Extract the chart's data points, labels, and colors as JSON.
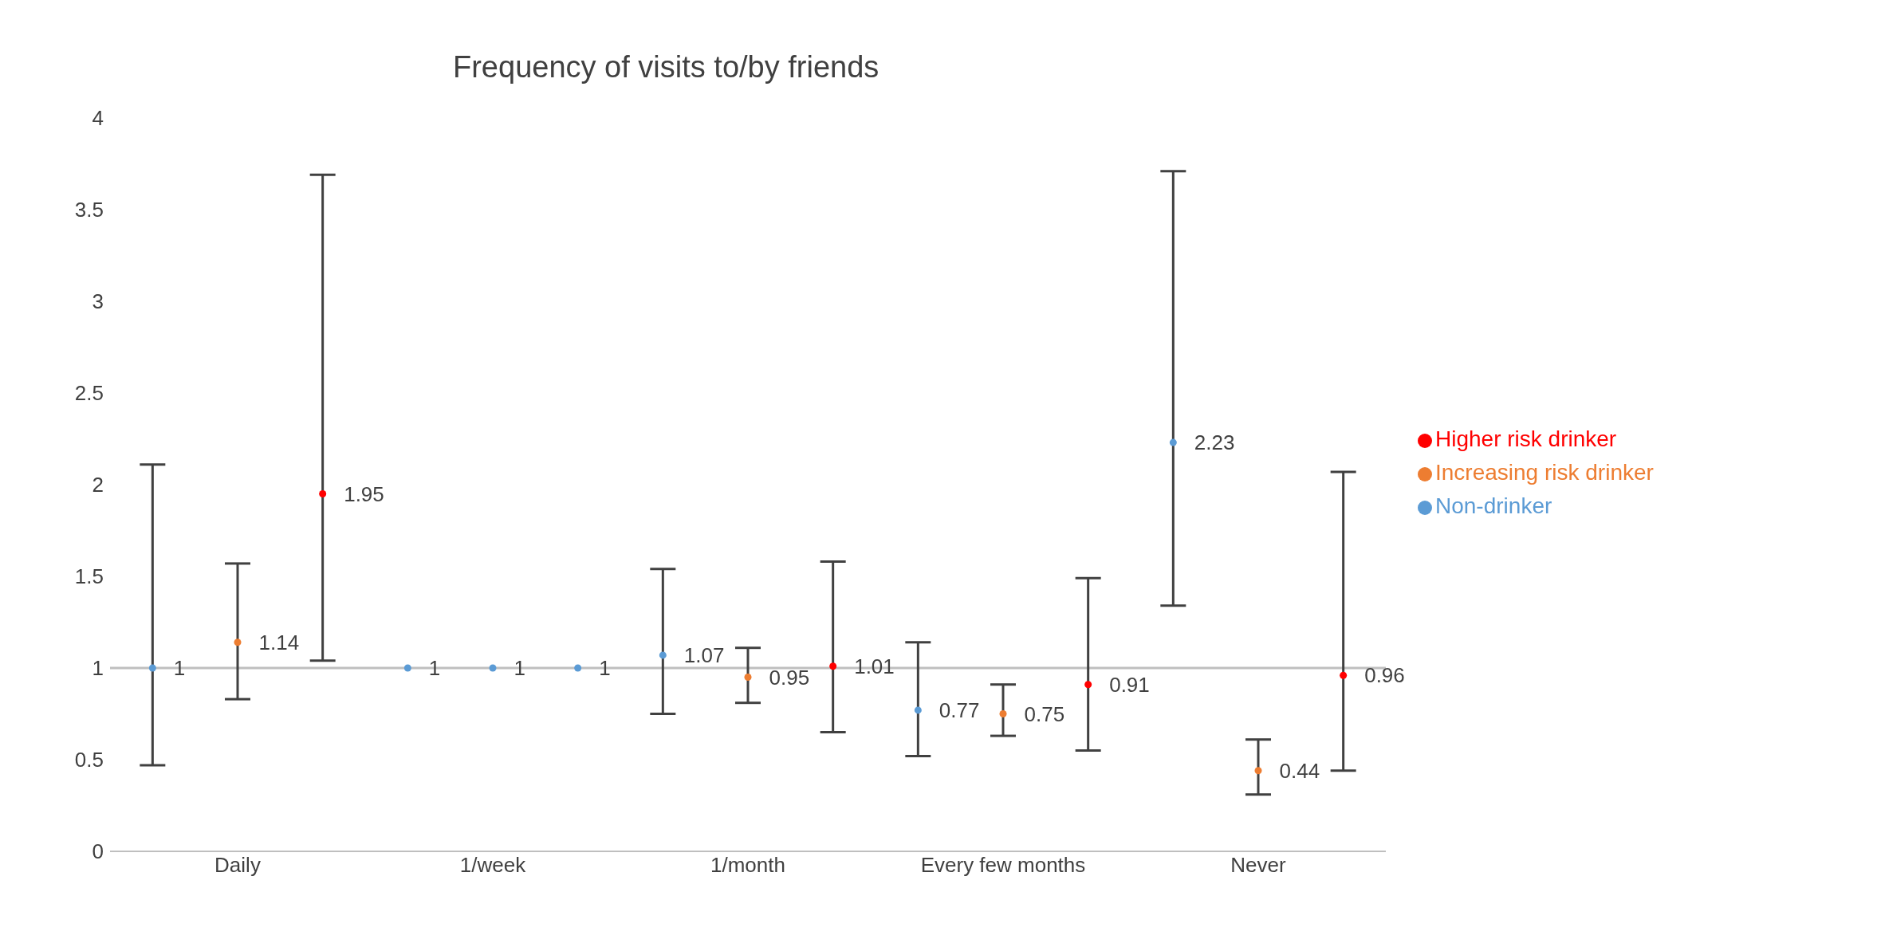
{
  "chart_data": {
    "type": "scatter",
    "title": "Frequency of visits to/by friends",
    "categories": [
      null,
      "Daily",
      null,
      null,
      "1/week",
      null,
      null,
      "1/month",
      null,
      null,
      "Every few months",
      null,
      null,
      "Never",
      null
    ],
    "series": [
      {
        "name": "Non-drinker",
        "color": "#5b9bd5",
        "values": [
          1,
          null,
          null,
          1,
          1,
          1,
          1.07,
          null,
          null,
          0.77,
          null,
          null,
          2.23,
          null,
          null
        ],
        "errors": [
          [
            0.47,
            2.11
          ],
          null,
          null,
          null,
          null,
          null,
          [
            0.75,
            1.54
          ],
          null,
          null,
          [
            0.52,
            1.14
          ],
          null,
          null,
          [
            1.34,
            3.71
          ],
          null,
          null
        ]
      },
      {
        "name": "Increasing risk drinker",
        "color": "#ed7d31",
        "values": [
          null,
          1.14,
          null,
          null,
          null,
          null,
          null,
          0.95,
          null,
          null,
          0.75,
          null,
          null,
          0.44,
          null
        ],
        "errors": [
          null,
          [
            0.83,
            1.57
          ],
          null,
          null,
          null,
          null,
          null,
          [
            0.81,
            1.11
          ],
          null,
          null,
          [
            0.63,
            0.91
          ],
          null,
          null,
          [
            0.31,
            0.61
          ],
          null
        ]
      },
      {
        "name": "Higher risk drinker",
        "color": "#ff0000",
        "values": [
          null,
          null,
          1.95,
          null,
          null,
          null,
          null,
          null,
          1.01,
          null,
          null,
          0.91,
          null,
          null,
          0.96
        ],
        "errors": [
          null,
          null,
          [
            1.04,
            3.69
          ],
          null,
          null,
          null,
          null,
          null,
          [
            0.65,
            1.58
          ],
          null,
          null,
          [
            0.55,
            1.49
          ],
          null,
          null,
          [
            0.44,
            2.07
          ]
        ]
      }
    ],
    "ylim": [
      0,
      4
    ],
    "yticks": [
      0,
      0.5,
      1,
      1.5,
      2,
      2.5,
      3,
      3.5,
      4
    ],
    "ref_lines": [
      {
        "axis": "y",
        "value": 1,
        "color": "#bfbfbf"
      }
    ],
    "data_labels": true,
    "legend": "right",
    "marker": "circle"
  }
}
